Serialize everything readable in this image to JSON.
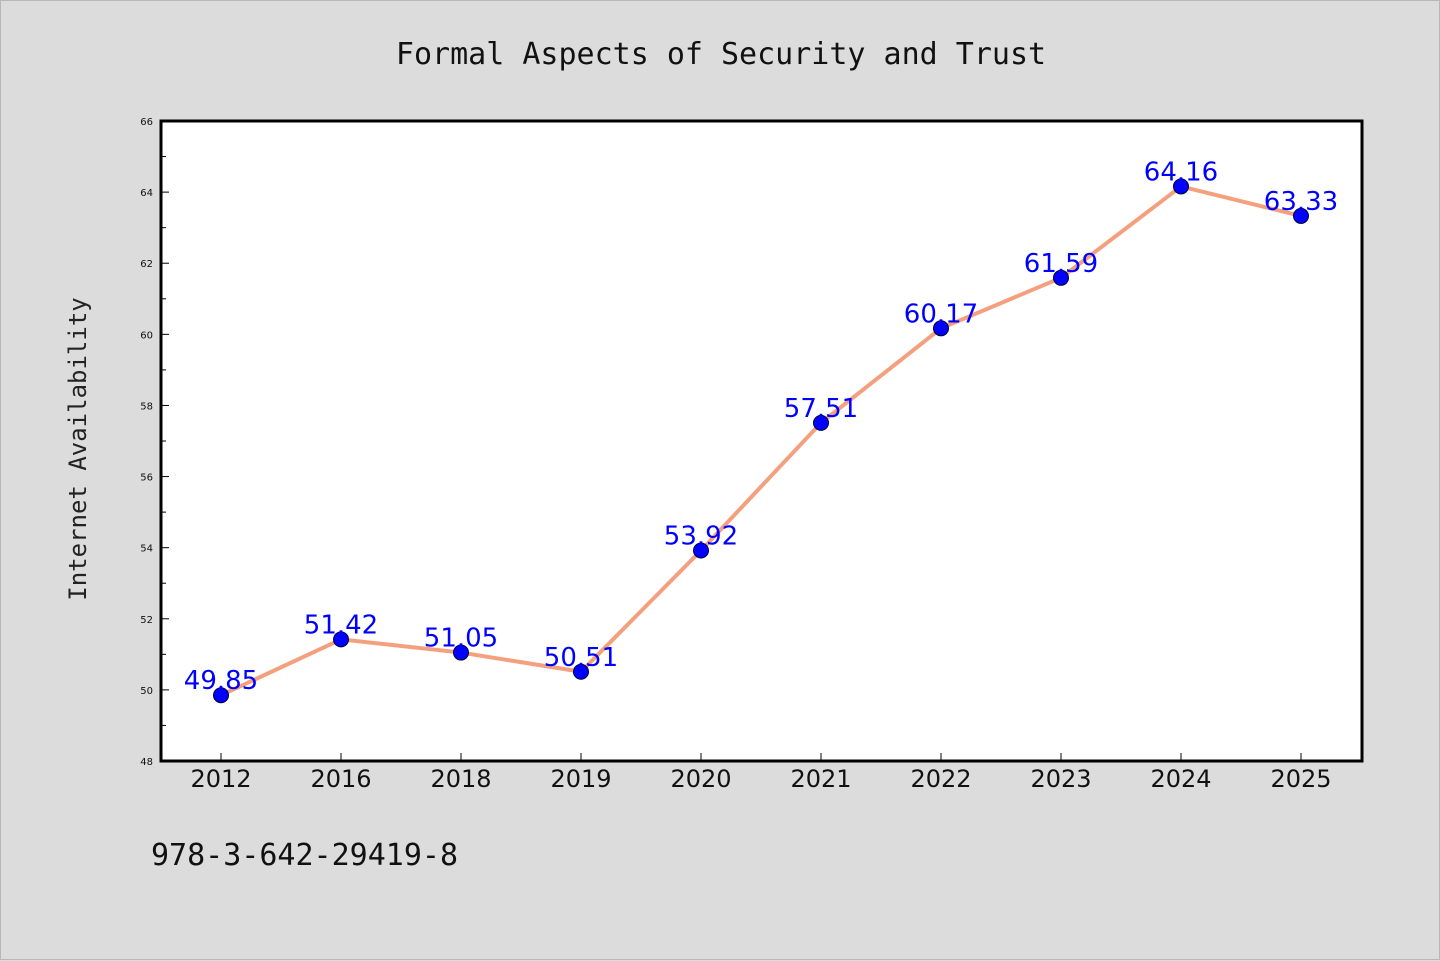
{
  "chart_data": {
    "type": "line",
    "title": "Formal Aspects of Security and Trust",
    "xlabel": "",
    "ylabel": "Internet Availability",
    "categories": [
      "2012",
      "2016",
      "2018",
      "2019",
      "2020",
      "2021",
      "2022",
      "2023",
      "2024",
      "2025"
    ],
    "series": [
      {
        "values": [
          49.85,
          51.42,
          51.05,
          50.51,
          53.92,
          57.51,
          60.17,
          61.59,
          64.16,
          63.33
        ],
        "labels": [
          "49.85",
          "51.42",
          "51.05",
          "50.51",
          "53.92",
          "57.51",
          "60.17",
          "61.59",
          "64.16",
          "63.33"
        ],
        "line_color": "#f4a07e",
        "marker_color": "#0000ff"
      }
    ],
    "ylim": [
      48,
      66
    ],
    "yticks": [
      "48",
      "50",
      "52",
      "54",
      "56",
      "58",
      "60",
      "62",
      "64",
      "66"
    ],
    "grid": false,
    "legend": "none"
  },
  "footer": {
    "isbn": "978-3-642-29419-8"
  },
  "colors": {
    "background": "#dcdcdc",
    "plot_background": "#ffffff",
    "data_label": "#0000ff"
  }
}
